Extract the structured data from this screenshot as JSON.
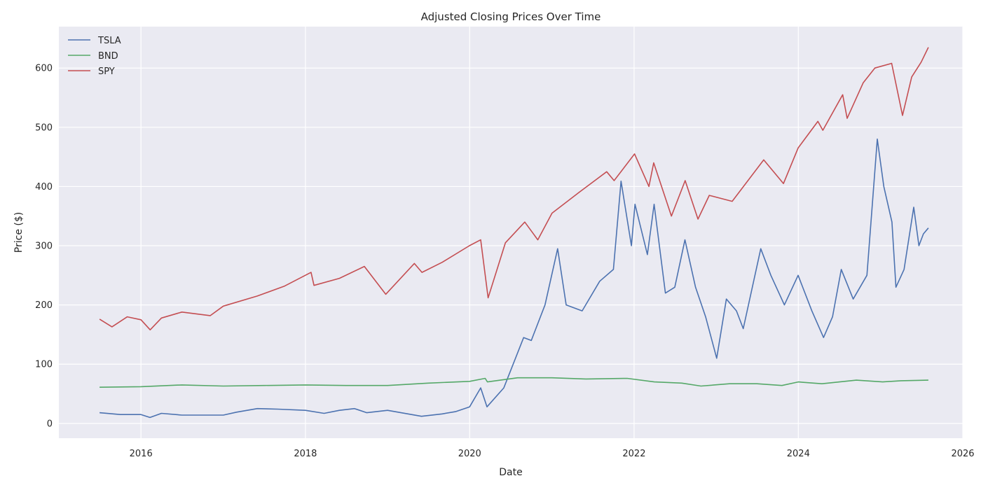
{
  "chart_data": {
    "type": "line",
    "title": "Adjusted Closing Prices Over Time",
    "xlabel": "Date",
    "ylabel": "Price ($)",
    "xlim": [
      "2015-01-01",
      "2026-01-01"
    ],
    "ylim": [
      -25,
      670
    ],
    "x_ticks": [
      "2016",
      "2018",
      "2020",
      "2022",
      "2024",
      "2026"
    ],
    "y_ticks": [
      0,
      100,
      200,
      300,
      400,
      500,
      600
    ],
    "grid": true,
    "legend": "top-left",
    "series": [
      {
        "name": "TSLA",
        "color": "#4c72b0",
        "points": [
          [
            "2015-07-01",
            18
          ],
          [
            "2015-10-01",
            15
          ],
          [
            "2016-01-01",
            15
          ],
          [
            "2016-02-10",
            10
          ],
          [
            "2016-04-01",
            17
          ],
          [
            "2016-07-01",
            14
          ],
          [
            "2016-10-01",
            14
          ],
          [
            "2017-01-01",
            14
          ],
          [
            "2017-03-01",
            19
          ],
          [
            "2017-06-01",
            25
          ],
          [
            "2017-09-01",
            24
          ],
          [
            "2018-01-01",
            22
          ],
          [
            "2018-03-25",
            17
          ],
          [
            "2018-06-01",
            22
          ],
          [
            "2018-08-07",
            25
          ],
          [
            "2018-10-01",
            18
          ],
          [
            "2019-01-01",
            22
          ],
          [
            "2019-06-01",
            12
          ],
          [
            "2019-09-01",
            16
          ],
          [
            "2019-11-01",
            20
          ],
          [
            "2020-01-01",
            28
          ],
          [
            "2020-02-19",
            60
          ],
          [
            "2020-03-18",
            28
          ],
          [
            "2020-06-01",
            60
          ],
          [
            "2020-08-28",
            145
          ],
          [
            "2020-10-01",
            140
          ],
          [
            "2020-12-01",
            200
          ],
          [
            "2021-01-26",
            295
          ],
          [
            "2021-03-05",
            200
          ],
          [
            "2021-05-15",
            190
          ],
          [
            "2021-08-01",
            240
          ],
          [
            "2021-10-01",
            260
          ],
          [
            "2021-11-04",
            409
          ],
          [
            "2021-12-20",
            300
          ],
          [
            "2022-01-05",
            370
          ],
          [
            "2022-03-01",
            285
          ],
          [
            "2022-03-31",
            370
          ],
          [
            "2022-05-20",
            220
          ],
          [
            "2022-07-01",
            230
          ],
          [
            "2022-08-15",
            310
          ],
          [
            "2022-10-01",
            230
          ],
          [
            "2022-11-15",
            180
          ],
          [
            "2023-01-03",
            110
          ],
          [
            "2023-02-15",
            210
          ],
          [
            "2023-04-01",
            190
          ],
          [
            "2023-05-01",
            160
          ],
          [
            "2023-07-18",
            295
          ],
          [
            "2023-09-01",
            250
          ],
          [
            "2023-10-31",
            200
          ],
          [
            "2023-12-31",
            250
          ],
          [
            "2024-03-01",
            190
          ],
          [
            "2024-04-22",
            145
          ],
          [
            "2024-06-01",
            180
          ],
          [
            "2024-07-10",
            260
          ],
          [
            "2024-09-01",
            210
          ],
          [
            "2024-11-01",
            250
          ],
          [
            "2024-12-17",
            480
          ],
          [
            "2025-01-15",
            400
          ],
          [
            "2025-02-20",
            340
          ],
          [
            "2025-03-10",
            230
          ],
          [
            "2025-04-15",
            260
          ],
          [
            "2025-05-28",
            365
          ],
          [
            "2025-06-20",
            300
          ],
          [
            "2025-07-10",
            320
          ],
          [
            "2025-08-01",
            330
          ]
        ]
      },
      {
        "name": "BND",
        "color": "#55a868",
        "points": [
          [
            "2015-07-01",
            61
          ],
          [
            "2016-01-01",
            62
          ],
          [
            "2016-07-01",
            65
          ],
          [
            "2017-01-01",
            63
          ],
          [
            "2017-07-01",
            64
          ],
          [
            "2018-01-01",
            65
          ],
          [
            "2018-07-01",
            64
          ],
          [
            "2019-01-01",
            64
          ],
          [
            "2019-07-01",
            68
          ],
          [
            "2020-01-01",
            71
          ],
          [
            "2020-03-10",
            76
          ],
          [
            "2020-03-20",
            70
          ],
          [
            "2020-08-01",
            77
          ],
          [
            "2021-01-01",
            77
          ],
          [
            "2021-06-01",
            75
          ],
          [
            "2021-12-01",
            76
          ],
          [
            "2022-04-01",
            70
          ],
          [
            "2022-08-01",
            68
          ],
          [
            "2022-10-25",
            63
          ],
          [
            "2023-03-01",
            67
          ],
          [
            "2023-07-01",
            67
          ],
          [
            "2023-10-20",
            64
          ],
          [
            "2024-01-01",
            70
          ],
          [
            "2024-04-15",
            67
          ],
          [
            "2024-09-15",
            73
          ],
          [
            "2025-01-10",
            70
          ],
          [
            "2025-04-01",
            72
          ],
          [
            "2025-08-01",
            73
          ]
        ]
      },
      {
        "name": "SPY",
        "color": "#c44e52",
        "points": [
          [
            "2015-07-01",
            176
          ],
          [
            "2015-08-25",
            163
          ],
          [
            "2015-11-01",
            180
          ],
          [
            "2016-01-01",
            175
          ],
          [
            "2016-02-11",
            158
          ],
          [
            "2016-04-01",
            178
          ],
          [
            "2016-07-01",
            188
          ],
          [
            "2016-11-04",
            182
          ],
          [
            "2017-01-01",
            198
          ],
          [
            "2017-06-01",
            215
          ],
          [
            "2017-10-01",
            232
          ],
          [
            "2018-01-26",
            255
          ],
          [
            "2018-02-08",
            233
          ],
          [
            "2018-06-01",
            245
          ],
          [
            "2018-09-20",
            265
          ],
          [
            "2018-12-24",
            218
          ],
          [
            "2019-04-30",
            270
          ],
          [
            "2019-06-03",
            255
          ],
          [
            "2019-09-01",
            272
          ],
          [
            "2019-12-31",
            300
          ],
          [
            "2020-02-19",
            310
          ],
          [
            "2020-03-23",
            212
          ],
          [
            "2020-06-08",
            305
          ],
          [
            "2020-09-02",
            340
          ],
          [
            "2020-10-30",
            310
          ],
          [
            "2021-01-01",
            355
          ],
          [
            "2021-05-01",
            390
          ],
          [
            "2021-09-01",
            425
          ],
          [
            "2021-10-04",
            410
          ],
          [
            "2022-01-03",
            455
          ],
          [
            "2022-03-08",
            400
          ],
          [
            "2022-03-29",
            440
          ],
          [
            "2022-06-16",
            350
          ],
          [
            "2022-08-16",
            410
          ],
          [
            "2022-10-12",
            345
          ],
          [
            "2022-12-01",
            385
          ],
          [
            "2023-03-13",
            375
          ],
          [
            "2023-07-31",
            445
          ],
          [
            "2023-10-27",
            405
          ],
          [
            "2023-12-31",
            465
          ],
          [
            "2024-03-28",
            510
          ],
          [
            "2024-04-19",
            495
          ],
          [
            "2024-07-16",
            555
          ],
          [
            "2024-08-05",
            515
          ],
          [
            "2024-10-15",
            575
          ],
          [
            "2024-12-06",
            600
          ],
          [
            "2025-02-19",
            608
          ],
          [
            "2025-04-08",
            520
          ],
          [
            "2025-05-19",
            585
          ],
          [
            "2025-06-30",
            610
          ],
          [
            "2025-08-01",
            635
          ]
        ]
      }
    ]
  }
}
